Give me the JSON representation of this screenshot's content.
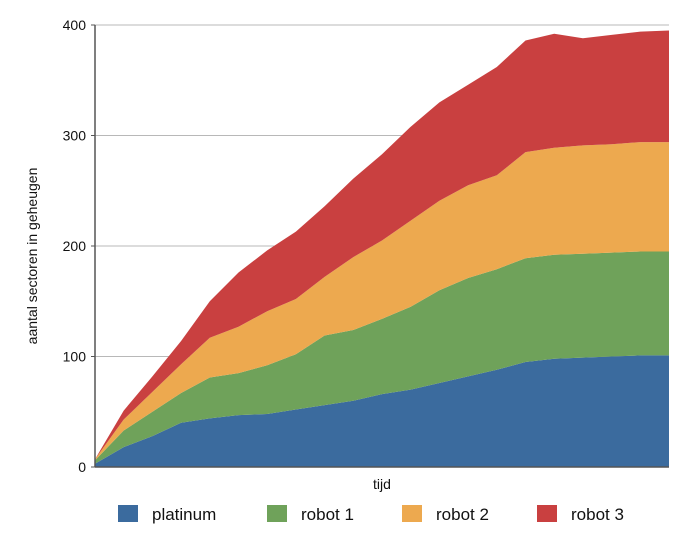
{
  "chart_data": {
    "type": "area",
    "stacked": true,
    "xlabel": "tijd",
    "ylabel": "aantal sectoren in geheugen",
    "ylim": [
      0,
      400
    ],
    "yticks": [
      0,
      100,
      200,
      300,
      400
    ],
    "xlim": [
      0,
      1
    ],
    "grid": true,
    "legend_position": "bottom",
    "x": [
      0,
      0.05,
      0.1,
      0.15,
      0.2,
      0.25,
      0.3,
      0.35,
      0.4,
      0.45,
      0.5,
      0.55,
      0.6,
      0.65,
      0.7,
      0.75,
      0.8,
      0.85,
      0.9,
      0.95,
      1.0
    ],
    "series": [
      {
        "name": "platinum",
        "color": "#3b6b9e",
        "values": [
          3,
          18,
          28,
          40,
          44,
          47,
          48,
          52,
          56,
          60,
          66,
          70,
          76,
          82,
          88,
          95,
          98,
          99,
          100,
          101,
          101
        ]
      },
      {
        "name": "robot 1",
        "color": "#6fa25a",
        "values": [
          3,
          15,
          22,
          27,
          37,
          38,
          44,
          50,
          63,
          64,
          68,
          75,
          84,
          89,
          91,
          94,
          94,
          94,
          94,
          94,
          94
        ]
      },
      {
        "name": "robot 2",
        "color": "#eda94f",
        "values": [
          1,
          10,
          18,
          26,
          36,
          42,
          49,
          50,
          53,
          66,
          71,
          78,
          81,
          84,
          85,
          96,
          97,
          98,
          98,
          99,
          99
        ]
      },
      {
        "name": "robot 3",
        "color": "#c94040",
        "values": [
          0,
          8,
          14,
          21,
          33,
          49,
          55,
          61,
          64,
          71,
          78,
          85,
          89,
          91,
          98,
          101,
          103,
          97,
          99,
          100,
          101
        ]
      }
    ]
  }
}
